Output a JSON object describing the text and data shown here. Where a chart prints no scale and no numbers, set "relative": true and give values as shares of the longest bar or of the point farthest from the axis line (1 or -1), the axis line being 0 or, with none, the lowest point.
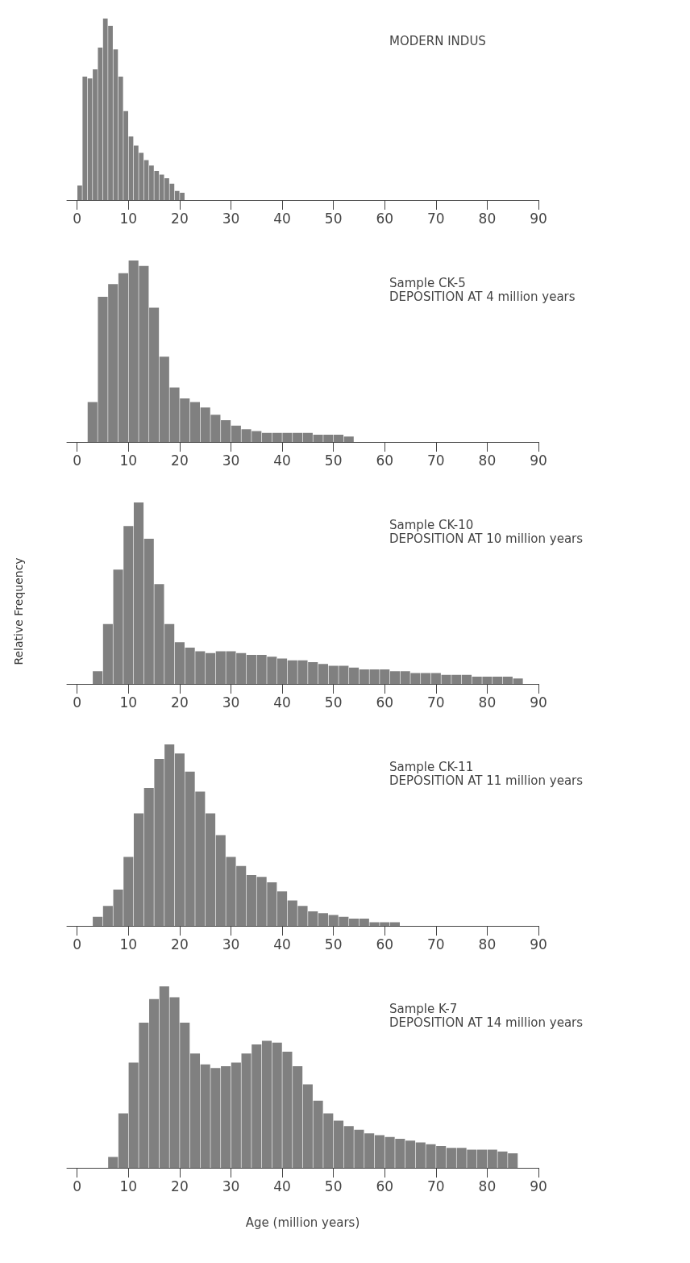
{
  "chart_data": [
    {
      "type": "bar",
      "title": "MODERN INDUS",
      "relative": true,
      "color": "#808080",
      "xlim": [
        -2,
        90
      ],
      "xticks": [
        0,
        10,
        20,
        30,
        40,
        50,
        60,
        70,
        80,
        90
      ],
      "grid": false,
      "tick_labels": "x",
      "x": [
        0.5,
        1.5,
        2.5,
        3.5,
        4.5,
        5.5,
        6.5,
        7.5,
        8.5,
        9.5,
        10.5,
        11.5,
        12.5,
        13.5,
        14.5,
        15.5,
        16.5,
        17.5,
        18.5,
        19.5,
        20.5
      ],
      "values": [
        0.08,
        0.68,
        0.67,
        0.72,
        0.84,
        1,
        0.96,
        0.83,
        0.68,
        0.49,
        0.35,
        0.3,
        0.26,
        0.22,
        0.19,
        0.16,
        0.14,
        0.12,
        0.09,
        0.05,
        0.04
      ]
    },
    {
      "type": "bar",
      "title": "Sample CK-5",
      "subtitle": "DEPOSITION AT 4 million years",
      "relative": true,
      "color": "#808080",
      "xlim": [
        -2,
        90
      ],
      "xticks": [
        0,
        10,
        20,
        30,
        40,
        50,
        60,
        70,
        80,
        90
      ],
      "grid": false,
      "tick_labels": "x",
      "x": [
        3,
        5,
        7,
        9,
        11,
        13,
        15,
        17,
        19,
        21,
        23,
        25,
        27,
        29,
        31,
        33,
        35,
        37,
        39,
        41,
        43,
        45,
        47,
        49,
        51,
        53
      ],
      "values": [
        0.22,
        0.8,
        0.87,
        0.93,
        1,
        0.97,
        0.74,
        0.47,
        0.3,
        0.24,
        0.22,
        0.19,
        0.15,
        0.12,
        0.09,
        0.07,
        0.06,
        0.05,
        0.05,
        0.05,
        0.05,
        0.05,
        0.04,
        0.04,
        0.04,
        0.03
      ]
    },
    {
      "type": "bar",
      "title": "Sample CK-10",
      "subtitle": "DEPOSITION AT 10 million years",
      "ylabel": "Relative Frequency",
      "relative": true,
      "color": "#808080",
      "xlim": [
        -2,
        90
      ],
      "xticks": [
        0,
        10,
        20,
        30,
        40,
        50,
        60,
        70,
        80,
        90
      ],
      "grid": false,
      "tick_labels": "x",
      "x": [
        4,
        6,
        8,
        10,
        12,
        14,
        16,
        18,
        20,
        22,
        24,
        26,
        28,
        30,
        32,
        34,
        36,
        38,
        40,
        42,
        44,
        46,
        48,
        50,
        52,
        54,
        56,
        58,
        60,
        62,
        64,
        66,
        68,
        70,
        72,
        74,
        76,
        78,
        80,
        82,
        84,
        86
      ],
      "values": [
        0.07,
        0.33,
        0.63,
        0.87,
        1,
        0.8,
        0.55,
        0.33,
        0.23,
        0.2,
        0.18,
        0.17,
        0.18,
        0.18,
        0.17,
        0.16,
        0.16,
        0.15,
        0.14,
        0.13,
        0.13,
        0.12,
        0.11,
        0.1,
        0.1,
        0.09,
        0.08,
        0.08,
        0.08,
        0.07,
        0.07,
        0.06,
        0.06,
        0.06,
        0.05,
        0.05,
        0.05,
        0.04,
        0.04,
        0.04,
        0.04,
        0.03
      ]
    },
    {
      "type": "bar",
      "title": "Sample CK-11",
      "subtitle": "DEPOSITION AT 11 million years",
      "relative": true,
      "color": "#808080",
      "xlim": [
        -2,
        90
      ],
      "xticks": [
        0,
        10,
        20,
        30,
        40,
        50,
        60,
        70,
        80,
        90
      ],
      "grid": false,
      "tick_labels": "x",
      "x": [
        4,
        6,
        8,
        10,
        12,
        14,
        16,
        18,
        20,
        22,
        24,
        26,
        28,
        30,
        32,
        34,
        36,
        38,
        40,
        42,
        44,
        46,
        48,
        50,
        52,
        54,
        56,
        58,
        60,
        62
      ],
      "values": [
        0.05,
        0.11,
        0.2,
        0.38,
        0.62,
        0.76,
        0.92,
        1,
        0.95,
        0.85,
        0.74,
        0.62,
        0.5,
        0.38,
        0.33,
        0.28,
        0.27,
        0.24,
        0.19,
        0.14,
        0.11,
        0.08,
        0.07,
        0.06,
        0.05,
        0.04,
        0.04,
        0.02,
        0.02,
        0.02
      ]
    },
    {
      "type": "bar",
      "title": "Sample K-7",
      "subtitle": "DEPOSITION AT 14 million years",
      "xlabel": "Age (million years)",
      "relative": true,
      "color": "#808080",
      "xlim": [
        -2,
        90
      ],
      "xticks": [
        0,
        10,
        20,
        30,
        40,
        50,
        60,
        70,
        80,
        90
      ],
      "grid": false,
      "tick_labels": "x",
      "x": [
        7,
        9,
        11,
        13,
        15,
        17,
        19,
        21,
        23,
        25,
        27,
        29,
        31,
        33,
        35,
        37,
        39,
        41,
        43,
        45,
        47,
        49,
        51,
        53,
        55,
        57,
        59,
        61,
        63,
        65,
        67,
        69,
        71,
        73,
        75,
        77,
        79,
        81,
        83,
        85
      ],
      "values": [
        0.06,
        0.3,
        0.58,
        0.8,
        0.93,
        1,
        0.94,
        0.8,
        0.63,
        0.57,
        0.55,
        0.56,
        0.58,
        0.63,
        0.68,
        0.7,
        0.69,
        0.64,
        0.56,
        0.46,
        0.37,
        0.3,
        0.26,
        0.23,
        0.21,
        0.19,
        0.18,
        0.17,
        0.16,
        0.15,
        0.14,
        0.13,
        0.12,
        0.11,
        0.11,
        0.1,
        0.1,
        0.1,
        0.09,
        0.08
      ]
    }
  ]
}
